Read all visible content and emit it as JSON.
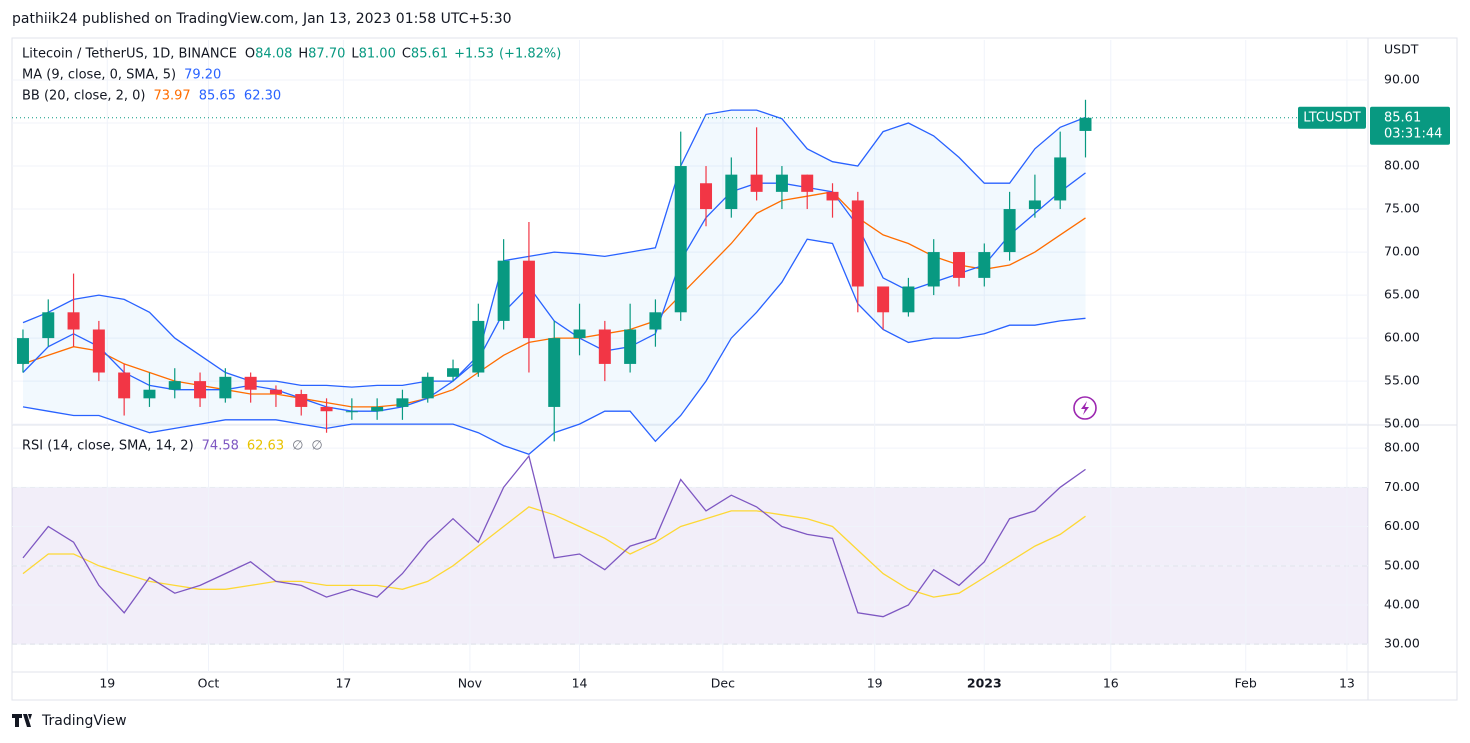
{
  "header": "pathiik24 published on TradingView.com, Jan 13, 2023 01:58 UTC+5:30",
  "footer": "TradingView",
  "chart_data": {
    "type": "candlestick",
    "title": "Litecoin / TetherUS, 1D, BINANCE",
    "currency": "USDT",
    "up_color": "#089981",
    "down_color": "#f23645",
    "ohlc_letters": [
      "O",
      "H",
      "L",
      "C"
    ],
    "ohlc_value_labels": [
      "84.08",
      "87.70",
      "81.00",
      "85.61"
    ],
    "change": {
      "value": 1.53,
      "label": "+1.53"
    },
    "change_pct": {
      "value": 1.82,
      "label": "(+1.82%)"
    },
    "symbol": "LTCUSDT",
    "countdown": "03:31:44",
    "xlim": [
      -0.3,
      160.5
    ],
    "xticks": [
      {
        "value": 11,
        "label": "19"
      },
      {
        "value": 23,
        "label": "Oct"
      },
      {
        "value": 39,
        "label": "17"
      },
      {
        "value": 54,
        "label": "Nov"
      },
      {
        "value": 67,
        "label": "14"
      },
      {
        "value": 84,
        "label": "Dec"
      },
      {
        "value": 102,
        "label": "19"
      },
      {
        "value": 115,
        "label": "2023"
      },
      {
        "value": 130,
        "label": "16"
      },
      {
        "value": 146,
        "label": "Feb"
      },
      {
        "value": 158,
        "label": "13"
      }
    ],
    "ylim": [
      49.9,
      94.65
    ],
    "yticks": [
      {
        "value": 50,
        "label": "50.00"
      },
      {
        "value": 55,
        "label": "55.00"
      },
      {
        "value": 60,
        "label": "60.00"
      },
      {
        "value": 65,
        "label": "65.00"
      },
      {
        "value": 70,
        "label": "70.00"
      },
      {
        "value": 75,
        "label": "75.00"
      },
      {
        "value": 80,
        "label": "80.00"
      },
      {
        "value": 85,
        "label": "85.00"
      },
      {
        "value": 90,
        "label": "90.00"
      }
    ],
    "candles": {
      "x": [
        1,
        4,
        7,
        10,
        13,
        16,
        19,
        22,
        25,
        28,
        31,
        34,
        37,
        40,
        43,
        46,
        49,
        52,
        55,
        58,
        61,
        64,
        67,
        70,
        73,
        76,
        79,
        82,
        85,
        88,
        91,
        94,
        97,
        100,
        103,
        106,
        109,
        112,
        115,
        118,
        121,
        124,
        127
      ],
      "open": [
        57,
        60,
        63,
        61,
        56,
        53,
        54,
        55,
        53,
        55.5,
        54,
        53.5,
        52,
        51.5,
        51.5,
        52,
        53,
        55.5,
        56,
        62,
        69,
        52,
        60,
        61,
        57,
        61,
        63,
        78,
        75,
        79,
        77,
        79,
        77,
        76,
        66,
        63,
        66,
        70,
        67,
        70,
        75,
        76,
        84.08
      ],
      "high": [
        61,
        64.5,
        67.5,
        62,
        57,
        56,
        56.5,
        56,
        56.5,
        56,
        54.5,
        54,
        53,
        53,
        53,
        54,
        56,
        57.5,
        64,
        71.5,
        73.5,
        62,
        64,
        62,
        64,
        64.5,
        84,
        80,
        81,
        84.5,
        80,
        79,
        78,
        77,
        64.5,
        67,
        71.5,
        70,
        71,
        77,
        79,
        84,
        87.7
      ],
      "low": [
        56,
        59,
        59,
        55,
        51,
        52,
        53,
        52,
        52.5,
        52.5,
        52,
        51,
        49,
        50.5,
        50.5,
        50.5,
        52.5,
        55,
        55.5,
        61,
        56,
        48,
        58,
        55,
        56,
        59,
        62,
        73,
        74,
        76,
        75,
        75,
        74,
        63,
        61,
        62.5,
        65,
        66,
        66,
        69,
        74,
        75,
        81
      ],
      "close": [
        60,
        63,
        61,
        56,
        53,
        54,
        55,
        53,
        55.5,
        54,
        53.5,
        52,
        51.5,
        51.5,
        52,
        53,
        55.5,
        56.5,
        62,
        69,
        60,
        60,
        61,
        57,
        61,
        63,
        80,
        75,
        79,
        77,
        79,
        77,
        76,
        66,
        63,
        66,
        70,
        67,
        70,
        75,
        76,
        81,
        85.61
      ]
    },
    "ma": {
      "name": "MA (9, close, 0, SMA, 5)",
      "color": "#2962ff",
      "last_label": "79.20",
      "values": [
        56,
        59,
        60.5,
        59,
        56,
        54.5,
        54,
        54,
        54,
        54.5,
        54,
        53,
        52,
        51.5,
        51.5,
        52,
        53,
        55,
        57.5,
        63,
        66,
        62,
        60,
        58.5,
        59,
        60.5,
        69,
        74,
        77,
        78,
        78,
        77.5,
        77,
        73,
        67,
        65.5,
        66.5,
        67.5,
        68.5,
        72,
        74.5,
        77,
        79.2
      ]
    },
    "bb": {
      "name": "BB (20, close, 2, 0)",
      "fill": "rgba(33,150,243,0.06)",
      "basis": {
        "color": "#ff6d00",
        "last_label": "73.97",
        "values": [
          57,
          58,
          59,
          58.5,
          57,
          56,
          55,
          54.5,
          54,
          53.5,
          53.5,
          53,
          52.5,
          52,
          52,
          52.3,
          53,
          54,
          56,
          58,
          59.5,
          60,
          60,
          60.5,
          61,
          62,
          65,
          68,
          71,
          74.5,
          76,
          76.5,
          77,
          74,
          72,
          71,
          69.5,
          68.5,
          68,
          68.5,
          70,
          72,
          73.97
        ]
      },
      "upper": {
        "color": "#2962ff",
        "last_label": "85.65",
        "values": [
          61.8,
          63,
          64.5,
          65,
          64.5,
          63,
          60,
          58,
          56,
          55,
          55,
          54.5,
          54.5,
          54.3,
          54.5,
          54.5,
          55,
          55,
          58,
          69,
          69.5,
          70,
          69.8,
          69.5,
          70,
          70.5,
          80,
          86,
          86.5,
          86.5,
          85.5,
          82,
          80.5,
          80,
          84,
          85,
          83.5,
          81,
          78,
          78,
          82,
          84.5,
          85.65
        ]
      },
      "lower": {
        "color": "#2962ff",
        "last_label": "62.30",
        "values": [
          52,
          51.5,
          51,
          51,
          50,
          49,
          49.5,
          50,
          50.5,
          50.5,
          50.5,
          50,
          49.5,
          50,
          50,
          50,
          50,
          50,
          49,
          47.5,
          46.5,
          49,
          50,
          51.5,
          51.5,
          48,
          51,
          55,
          60,
          63,
          66.5,
          71.5,
          71,
          64,
          61,
          59.5,
          60,
          60,
          60.5,
          61.5,
          61.5,
          62,
          62.3
        ]
      }
    },
    "rsi": {
      "name": "RSI (14, close, SMA, 14, 2)",
      "extra_labels": [
        "∅",
        "∅"
      ],
      "ylim": [
        22.9,
        85.9
      ],
      "yticks": [
        {
          "value": 30,
          "label": "30.00"
        },
        {
          "value": 40,
          "label": "40.00"
        },
        {
          "value": 50,
          "label": "50.00"
        },
        {
          "value": 60,
          "label": "60.00"
        },
        {
          "value": 70,
          "label": "70.00"
        },
        {
          "value": 80,
          "label": "80.00"
        }
      ],
      "band": [
        30,
        70
      ],
      "midline": 50,
      "band_color": "rgba(126,87,194,0.1)",
      "line": {
        "color": "#7e57c2",
        "last_label": "74.58",
        "values": [
          52,
          60,
          56,
          45,
          38,
          47,
          43,
          45,
          48,
          51,
          46,
          45,
          42,
          44,
          42,
          48,
          56,
          62,
          56,
          70,
          78,
          52,
          53,
          49,
          55,
          57,
          72,
          64,
          68,
          65,
          60,
          58,
          57,
          38,
          37,
          40,
          49,
          45,
          51,
          62,
          64,
          70,
          74.58
        ]
      },
      "ma": {
        "color": "#fdd835",
        "last_label": "62.63",
        "values": [
          48,
          53,
          53,
          50,
          48,
          46,
          45,
          44,
          44,
          45,
          46,
          46,
          45,
          45,
          45,
          44,
          46,
          50,
          55,
          60,
          65,
          63,
          60,
          57,
          53,
          56,
          60,
          62,
          64,
          64,
          63,
          62,
          60,
          54,
          48,
          44,
          42,
          43,
          47,
          51,
          55,
          58,
          62.63
        ]
      }
    }
  }
}
